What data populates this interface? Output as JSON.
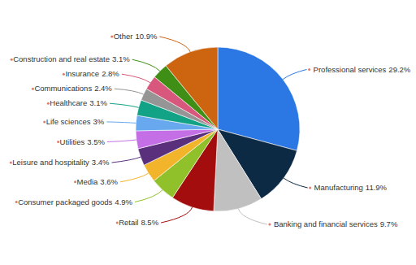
{
  "chart_data": {
    "type": "pie",
    "categories": [
      "Professional services",
      "Manufacturing",
      "Banking and financial services",
      "Retail",
      "Consumer packaged goods",
      "Media",
      "Leisure and hospitality",
      "Utilities",
      "Life sciences",
      "Healthcare",
      "Communications",
      "Insurance",
      "Construction and real estate",
      "Other"
    ],
    "values": [
      29.2,
      11.9,
      9.7,
      8.5,
      4.9,
      3.6,
      3.4,
      3.5,
      3,
      3.1,
      2.4,
      2.8,
      3.1,
      10.9
    ],
    "value_labels": [
      "29.2%",
      "11.9%",
      "9.7%",
      "8.5%",
      "4.9%",
      "3.6%",
      "3.4%",
      "3.5%",
      "3%",
      "3.1%",
      "2.4%",
      "2.8%",
      "3.1%",
      "10.9%"
    ],
    "colors": [
      "#2b78e4",
      "#0d2a45",
      "#c0c0c0",
      "#a30d0d",
      "#90c12b",
      "#f2b42a",
      "#5a2f7c",
      "#c46fe6",
      "#67a8ee",
      "#12a286",
      "#959595",
      "#d7587c",
      "#3f8f16",
      "#cc6410"
    ],
    "data_labels": true
  }
}
